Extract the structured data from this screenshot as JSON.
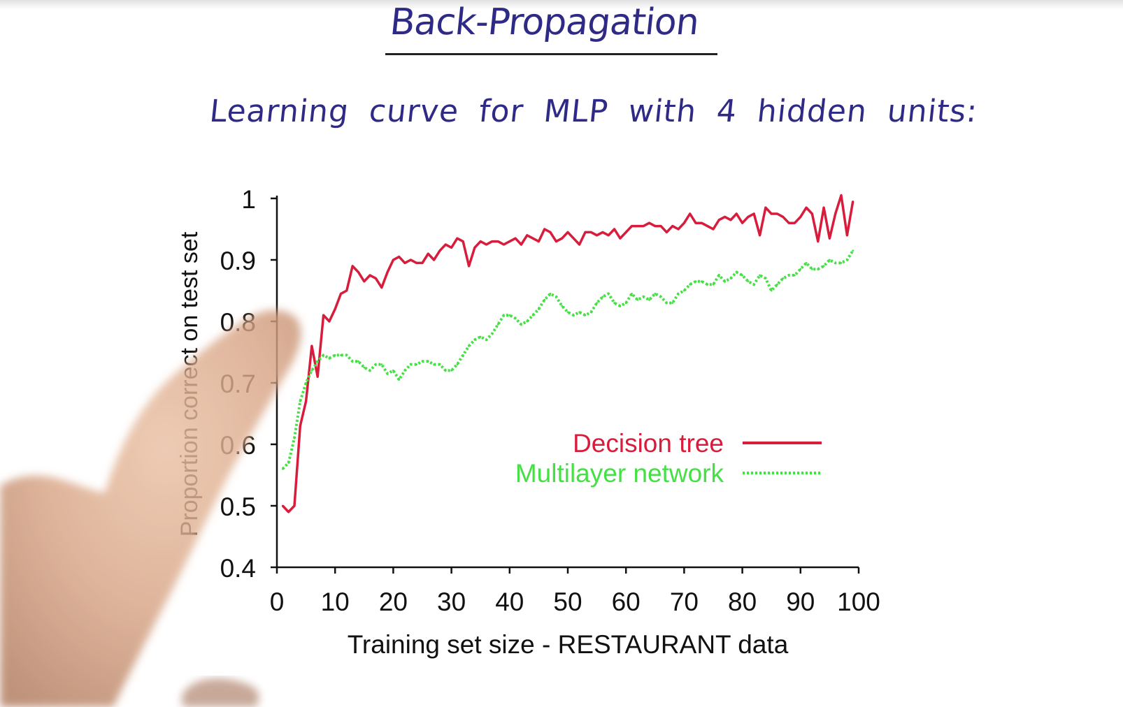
{
  "slide": {
    "title": "Back-Propagation",
    "subtitle": "Learning curve for MLP with 4 hidden units:"
  },
  "chart_data": {
    "type": "line",
    "xlabel": "Training set size - RESTAURANT data",
    "ylabel": "Proportion correct on test set",
    "xlim": [
      0,
      100
    ],
    "ylim": [
      0.4,
      1
    ],
    "xticks": [
      "0",
      "10",
      "20",
      "30",
      "40",
      "50",
      "60",
      "70",
      "80",
      "90",
      "100"
    ],
    "yticks": [
      "0.4",
      "0.5",
      "0.6",
      "0.7",
      "0.8",
      "0.9",
      "1"
    ],
    "legend_position": "right",
    "series": [
      {
        "name": "Decision tree",
        "color": "#d81c3c",
        "style": "solid",
        "x": [
          1,
          2,
          3,
          4,
          5,
          6,
          7,
          8,
          9,
          10,
          11,
          12,
          13,
          14,
          15,
          16,
          17,
          18,
          19,
          20,
          21,
          22,
          23,
          24,
          25,
          26,
          27,
          28,
          29,
          30,
          31,
          32,
          33,
          34,
          35,
          36,
          37,
          38,
          39,
          40,
          41,
          42,
          43,
          44,
          45,
          46,
          47,
          48,
          49,
          50,
          51,
          52,
          53,
          54,
          55,
          56,
          57,
          58,
          59,
          60,
          61,
          62,
          63,
          64,
          65,
          66,
          67,
          68,
          69,
          70,
          71,
          72,
          73,
          74,
          75,
          76,
          77,
          78,
          79,
          80,
          81,
          82,
          83,
          84,
          85,
          86,
          87,
          88,
          89,
          90,
          91,
          92,
          93,
          94,
          95,
          96,
          97,
          98,
          99
        ],
        "y": [
          0.5,
          0.49,
          0.5,
          0.63,
          0.67,
          0.76,
          0.71,
          0.81,
          0.8,
          0.82,
          0.845,
          0.85,
          0.89,
          0.88,
          0.865,
          0.875,
          0.87,
          0.855,
          0.88,
          0.9,
          0.905,
          0.895,
          0.9,
          0.895,
          0.895,
          0.91,
          0.9,
          0.915,
          0.925,
          0.92,
          0.935,
          0.93,
          0.89,
          0.92,
          0.93,
          0.925,
          0.93,
          0.93,
          0.925,
          0.93,
          0.935,
          0.925,
          0.94,
          0.935,
          0.93,
          0.95,
          0.945,
          0.93,
          0.935,
          0.945,
          0.935,
          0.925,
          0.945,
          0.945,
          0.94,
          0.945,
          0.94,
          0.95,
          0.935,
          0.945,
          0.955,
          0.955,
          0.955,
          0.96,
          0.955,
          0.955,
          0.945,
          0.955,
          0.95,
          0.96,
          0.975,
          0.96,
          0.96,
          0.955,
          0.95,
          0.965,
          0.97,
          0.965,
          0.975,
          0.96,
          0.97,
          0.975,
          0.94,
          0.985,
          0.975,
          0.975,
          0.97,
          0.96,
          0.96,
          0.97,
          0.985,
          0.975,
          0.93,
          0.985,
          0.935,
          0.975,
          1.005,
          0.94,
          0.995
        ]
      },
      {
        "name": "Multilayer network",
        "color": "#44e044",
        "style": "dotted",
        "x": [
          1,
          2,
          3,
          4,
          5,
          6,
          7,
          8,
          9,
          10,
          11,
          12,
          13,
          14,
          15,
          16,
          17,
          18,
          19,
          20,
          21,
          22,
          23,
          24,
          25,
          26,
          27,
          28,
          29,
          30,
          31,
          32,
          33,
          34,
          35,
          36,
          37,
          38,
          39,
          40,
          41,
          42,
          43,
          44,
          45,
          46,
          47,
          48,
          49,
          50,
          51,
          52,
          53,
          54,
          55,
          56,
          57,
          58,
          59,
          60,
          61,
          62,
          63,
          64,
          65,
          66,
          67,
          68,
          69,
          70,
          71,
          72,
          73,
          74,
          75,
          76,
          77,
          78,
          79,
          80,
          81,
          82,
          83,
          84,
          85,
          86,
          87,
          88,
          89,
          90,
          91,
          92,
          93,
          94,
          95,
          96,
          97,
          98,
          99
        ],
        "y": [
          0.56,
          0.57,
          0.61,
          0.67,
          0.7,
          0.72,
          0.735,
          0.745,
          0.74,
          0.745,
          0.745,
          0.745,
          0.735,
          0.735,
          0.725,
          0.72,
          0.73,
          0.73,
          0.715,
          0.72,
          0.705,
          0.72,
          0.73,
          0.73,
          0.735,
          0.735,
          0.73,
          0.73,
          0.72,
          0.72,
          0.73,
          0.745,
          0.76,
          0.77,
          0.775,
          0.77,
          0.78,
          0.795,
          0.81,
          0.81,
          0.805,
          0.795,
          0.8,
          0.81,
          0.82,
          0.835,
          0.845,
          0.84,
          0.825,
          0.815,
          0.81,
          0.815,
          0.81,
          0.815,
          0.83,
          0.84,
          0.845,
          0.83,
          0.825,
          0.83,
          0.845,
          0.835,
          0.84,
          0.835,
          0.845,
          0.84,
          0.83,
          0.83,
          0.845,
          0.85,
          0.86,
          0.865,
          0.865,
          0.86,
          0.86,
          0.875,
          0.865,
          0.87,
          0.88,
          0.875,
          0.865,
          0.86,
          0.875,
          0.87,
          0.85,
          0.86,
          0.87,
          0.875,
          0.875,
          0.885,
          0.895,
          0.885,
          0.885,
          0.89,
          0.9,
          0.895,
          0.895,
          0.9,
          0.915
        ]
      }
    ]
  }
}
